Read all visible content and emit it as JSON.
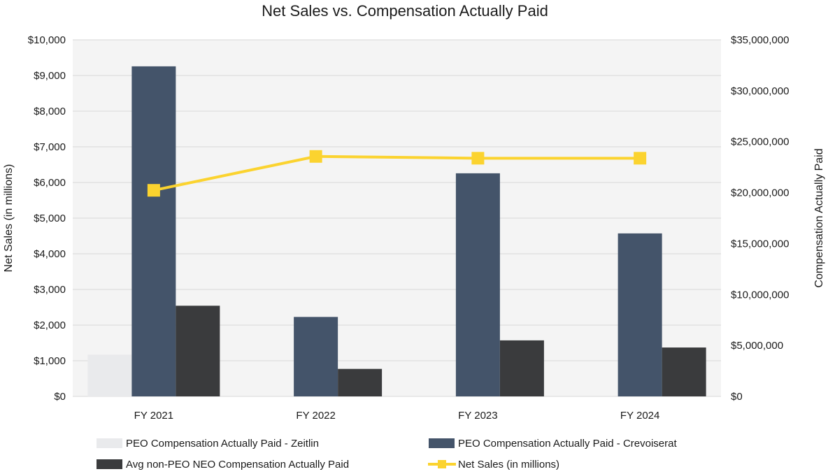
{
  "chart_data": {
    "type": "bar",
    "title": "Net Sales vs. Compensation Actually Paid",
    "categories": [
      "FY 2021",
      "FY 2022",
      "FY 2023",
      "FY 2024"
    ],
    "ylabel_left": "Net Sales (in millions)",
    "ylabel_right": "Compensation Actually Paid",
    "ylim_left": [
      0,
      10000
    ],
    "ylim_right": [
      0,
      35000000
    ],
    "left_ticks": [
      "$0",
      "$1,000",
      "$2,000",
      "$3,000",
      "$4,000",
      "$5,000",
      "$6,000",
      "$7,000",
      "$8,000",
      "$9,000",
      "$10,000"
    ],
    "right_ticks": [
      "$0",
      "$5,000,000",
      "$10,000,000",
      "$15,000,000",
      "$20,000,000",
      "$25,000,000",
      "$30,000,000",
      "$35,000,000"
    ],
    "grid": true,
    "legend_position": "bottom",
    "series": [
      {
        "name": "PEO Compensation Actually Paid - Zeitlin",
        "type": "bar",
        "axis": "right",
        "color": "#e9eaec",
        "values": [
          4100000,
          null,
          null,
          null
        ]
      },
      {
        "name": "PEO Compensation Actually Paid - Crevoiserat",
        "type": "bar",
        "axis": "right",
        "color": "#44546a",
        "values": [
          32400000,
          7800000,
          21900000,
          16000000
        ]
      },
      {
        "name": "Avg non-PEO NEO Compensation Actually Paid",
        "type": "bar",
        "axis": "right",
        "color": "#3a3b3d",
        "values": [
          8900000,
          2700000,
          5500000,
          4800000
        ]
      },
      {
        "name": "Net Sales (in millions)",
        "type": "line",
        "axis": "left",
        "color": "#fbd32f",
        "values": [
          5780,
          6730,
          6680,
          6680
        ]
      }
    ]
  }
}
